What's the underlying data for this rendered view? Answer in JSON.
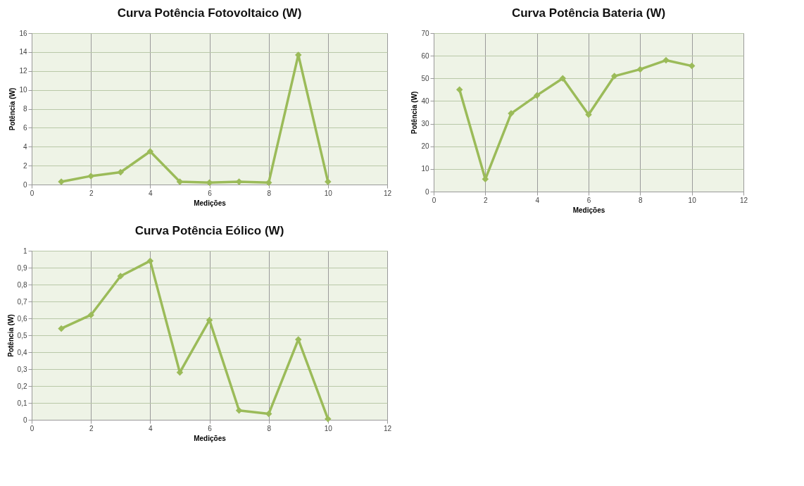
{
  "chart_data": [
    {
      "type": "line",
      "title": "Curva Potência Fotovoltaico (W)",
      "xlabel": "Medições",
      "ylabel": "Potência (W)",
      "x": [
        1,
        2,
        3,
        4,
        5,
        6,
        7,
        8,
        9,
        10
      ],
      "color": "#9bbb59",
      "marker": "diamond",
      "values": [
        0.3,
        0.9,
        1.3,
        3.5,
        0.3,
        0.2,
        0.3,
        0.2,
        13.7,
        0.3
      ],
      "xlim": [
        0,
        12
      ],
      "xticks": [
        0,
        2,
        4,
        6,
        8,
        10,
        12
      ],
      "ylim": [
        0,
        16
      ],
      "yticks": [
        0,
        2,
        4,
        6,
        8,
        10,
        12,
        14,
        16
      ],
      "grid": true
    },
    {
      "type": "line",
      "title": "Curva Potência Eólico (W)",
      "xlabel": "Medições",
      "ylabel": "Potência (W)",
      "x": [
        1,
        2,
        3,
        4,
        5,
        6,
        7,
        8,
        9,
        10
      ],
      "color": "#9bbb59",
      "marker": "diamond",
      "values": [
        0.54,
        0.62,
        0.85,
        0.94,
        0.28,
        0.59,
        0.055,
        0.035,
        0.475,
        0.005
      ],
      "xlim": [
        0,
        12
      ],
      "xticks": [
        0,
        2,
        4,
        6,
        8,
        10,
        12
      ],
      "ylim": [
        0,
        1
      ],
      "yticks": [
        0,
        {
          "value": 0.1,
          "label": "0,1"
        },
        {
          "value": 0.2,
          "label": "0,2"
        },
        {
          "value": 0.3,
          "label": "0,3"
        },
        {
          "value": 0.4,
          "label": "0,4"
        },
        {
          "value": 0.5,
          "label": "0,5"
        },
        {
          "value": 0.6,
          "label": "0,6"
        },
        {
          "value": 0.7,
          "label": "0,7"
        },
        {
          "value": 0.8,
          "label": "0,8"
        },
        {
          "value": 0.9,
          "label": "0,9"
        },
        1
      ],
      "grid": true
    },
    {
      "type": "line",
      "title": "Curva Potência Bateria (W)",
      "xlabel": "Medições",
      "ylabel": "Potência (W)",
      "x": [
        1,
        2,
        3,
        4,
        5,
        6,
        7,
        8,
        9,
        10
      ],
      "color": "#9bbb59",
      "marker": "diamond",
      "values": [
        45,
        5.5,
        34.5,
        42.5,
        50,
        34,
        51,
        54,
        58,
        55.5
      ],
      "xlim": [
        0,
        12
      ],
      "xticks": [
        0,
        2,
        4,
        6,
        8,
        10,
        12
      ],
      "ylim": [
        0,
        70
      ],
      "yticks": [
        0,
        10,
        20,
        30,
        40,
        50,
        60,
        70
      ],
      "grid": true
    }
  ]
}
